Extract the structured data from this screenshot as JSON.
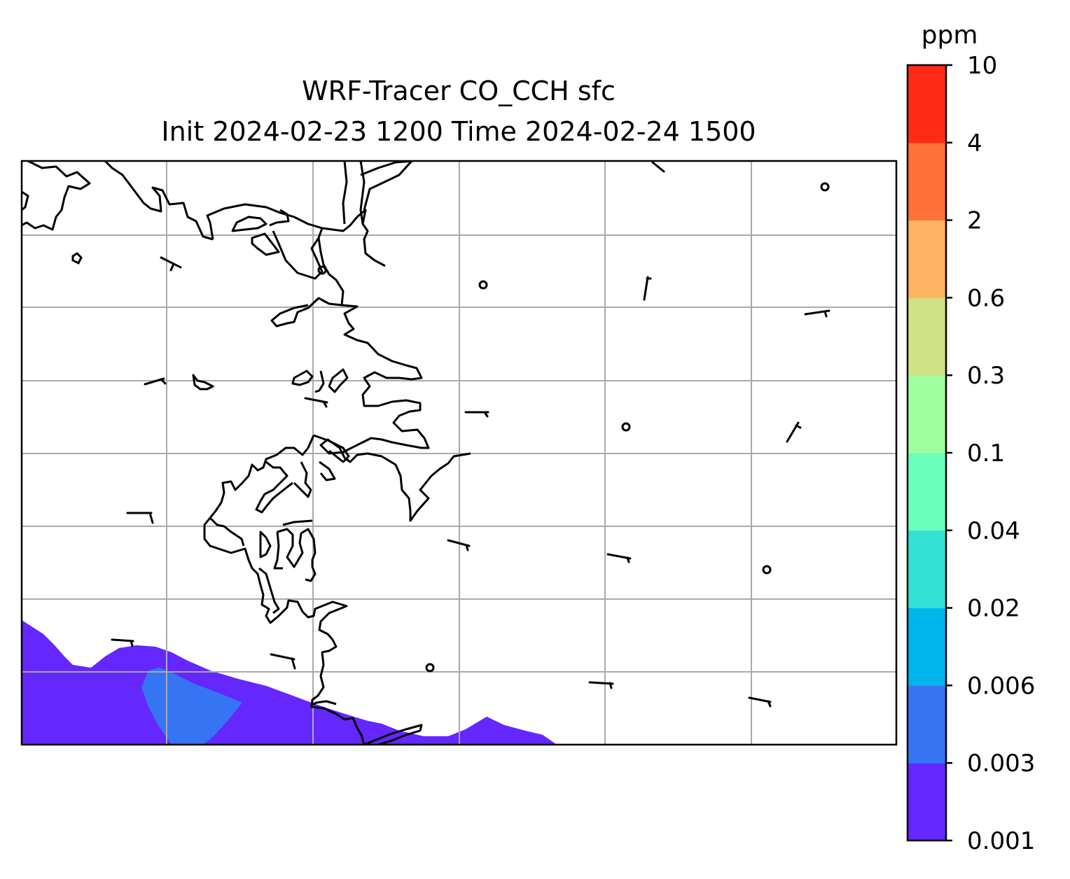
{
  "title": {
    "line1": "WRF-Tracer CO_CCH sfc",
    "line2": "Init 2024-02-23 1200 Time 2024-02-24 1500"
  },
  "colorbar": {
    "unit": "ppm",
    "levels": [
      "0.001",
      "0.003",
      "0.006",
      "0.02",
      "0.04",
      "0.1",
      "0.3",
      "0.6",
      "2",
      "4",
      "10"
    ],
    "colors": [
      "#6427fd",
      "#3575f4",
      "#00b5eb",
      "#31e1d4",
      "#6bffbc",
      "#9dff9d",
      "#d0e283",
      "#ffb363",
      "#ff7138",
      "#ff2b16"
    ]
  },
  "map": {
    "gridlines": true,
    "gridline_color": "#aaaaaa",
    "coastline_color": "#000000",
    "wind_barbs": "sparse black wind barbs with calm circles"
  }
}
